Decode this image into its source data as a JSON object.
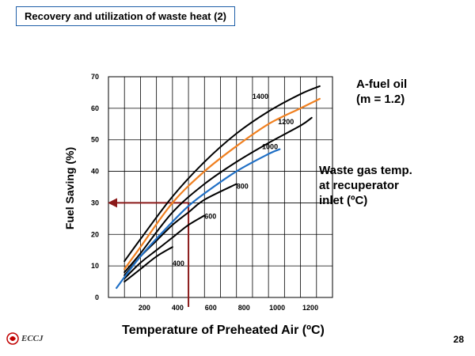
{
  "slide": {
    "title": "Recovery and utilization of waste heat (2)",
    "page_number": "28",
    "logo_text": "ECCJ"
  },
  "chart_data": {
    "type": "line",
    "xlabel": "Temperature of Preheated Air (ºC)",
    "ylabel": "Fuel Saving (%)",
    "xlim": [
      0,
      1400
    ],
    "ylim": [
      0,
      70
    ],
    "x_ticks": [
      200,
      400,
      600,
      800,
      1000,
      1200
    ],
    "y_ticks": [
      0,
      10,
      20,
      30,
      40,
      50,
      60,
      70
    ],
    "grid": true,
    "series": [
      {
        "name": "400",
        "color": "#000000",
        "x": [
          100,
          200,
          300,
          400
        ],
        "y": [
          5,
          9,
          13,
          16
        ]
      },
      {
        "name": "600",
        "color": "#000000",
        "x": [
          100,
          200,
          300,
          400,
          500,
          600
        ],
        "y": [
          6,
          11,
          15,
          19,
          23,
          26
        ]
      },
      {
        "name": "800",
        "color": "#000000",
        "x": [
          100,
          200,
          300,
          400,
          500,
          600,
          800
        ],
        "y": [
          7,
          13,
          18,
          23,
          27,
          31,
          36
        ]
      },
      {
        "name": "1000",
        "color": "#1f6fc5",
        "x": [
          50,
          200,
          400,
          500,
          600,
          800,
          1000,
          1070
        ],
        "y": [
          3,
          13,
          24,
          29,
          33,
          40,
          45.5,
          47
        ]
      },
      {
        "name": "1200",
        "color": "#000000",
        "x": [
          100,
          200,
          400,
          600,
          800,
          1000,
          1200,
          1270
        ],
        "y": [
          8,
          14,
          27,
          36,
          43,
          49,
          54.5,
          57
        ]
      },
      {
        "name": "A-fuel oil (m = 1.2)",
        "color": "#f08020",
        "x": [
          100,
          200,
          400,
          600,
          800,
          1000,
          1200,
          1320
        ],
        "y": [
          9,
          16,
          30,
          40,
          48,
          55,
          60,
          63
        ]
      },
      {
        "name": "1400",
        "color": "#000000",
        "x": [
          100,
          200,
          400,
          600,
          800,
          1000,
          1200,
          1320
        ],
        "y": [
          11.5,
          18.5,
          32,
          43,
          52,
          59,
          64.5,
          67
        ]
      }
    ],
    "annotations": [
      {
        "text": "A-fuel oil",
        "target": "orange-curve"
      },
      {
        "text": "(m = 1.2)",
        "target": "orange-curve"
      },
      {
        "text": "Waste gas temp.",
        "target": "curves"
      },
      {
        "text": "at recuperator",
        "target": "curves"
      },
      {
        "text": "inlet (ºC)",
        "target": "curves"
      }
    ],
    "reference_lines": {
      "color": "#8b1a1a",
      "x_value": 500,
      "y_value": 30
    }
  }
}
